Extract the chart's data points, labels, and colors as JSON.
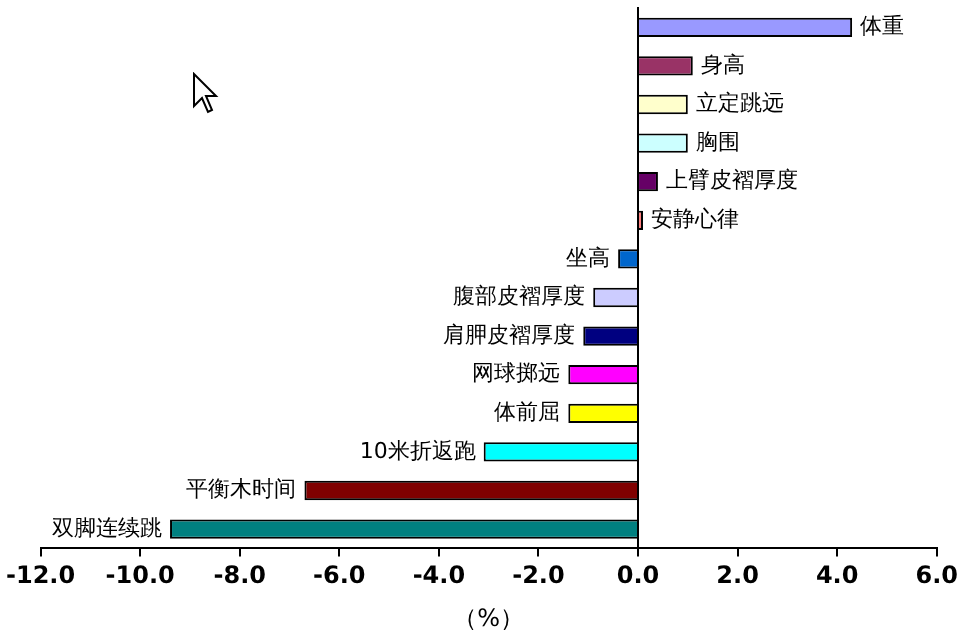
{
  "chart_data": {
    "type": "bar",
    "orientation": "horizontal",
    "xlabel": "（%）",
    "categories": [
      "体重",
      "身高",
      "立定跳远",
      "胸围",
      "上臂皮褶厚度",
      "安静心律",
      "坐高",
      "腹部皮褶厚度",
      "肩胛皮褶厚度",
      "网球掷远",
      "体前屈",
      "10米折返跑",
      "平衡木时间",
      "双脚连续跳"
    ],
    "values": [
      4.3,
      1.1,
      1.0,
      1.0,
      0.4,
      0.1,
      -0.4,
      -0.9,
      -1.1,
      -1.4,
      -1.4,
      -3.1,
      -6.7,
      -9.4
    ],
    "colors": [
      "#9999ff",
      "#993366",
      "#ffffcc",
      "#ccffff",
      "#660066",
      "#ff8080",
      "#0066cc",
      "#ccccff",
      "#000080",
      "#ff00ff",
      "#ffff00",
      "#00ffff",
      "#800000",
      "#008080"
    ],
    "xlim": [
      -12,
      6
    ],
    "xticks": [
      {
        "value": -12,
        "label": "-12.0"
      },
      {
        "value": -10,
        "label": "-10.0"
      },
      {
        "value": -8,
        "label": "-8.0"
      },
      {
        "value": -6,
        "label": "-6.0"
      },
      {
        "value": -4,
        "label": "-4.0"
      },
      {
        "value": -2,
        "label": "-2.0"
      },
      {
        "value": 0,
        "label": "0.0"
      },
      {
        "value": 2,
        "label": "2.0"
      },
      {
        "value": 4,
        "label": "4.0"
      },
      {
        "value": 6,
        "label": "6.0"
      }
    ],
    "grid": false,
    "legend": false
  }
}
